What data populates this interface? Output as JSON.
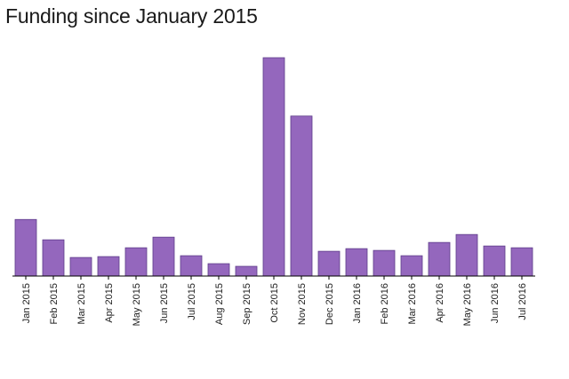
{
  "chart_data": {
    "type": "bar",
    "title": "Funding since January 2015",
    "xlabel": "",
    "ylabel": "",
    "categories": [
      "Jan 2015",
      "Feb 2015",
      "Mar 2015",
      "Apr 2015",
      "May 2015",
      "Jun 2015",
      "Jul 2015",
      "Aug 2015",
      "Sep 2015",
      "Oct 2015",
      "Nov 2015",
      "Dec 2015",
      "Jan 2016",
      "Feb 2016",
      "Mar 2016",
      "Apr 2016",
      "May 2016",
      "Jun 2016",
      "Jul 2016"
    ],
    "values": [
      64,
      41,
      21,
      22,
      32,
      44,
      23,
      14,
      11,
      247,
      181,
      28,
      31,
      29,
      23,
      38,
      47,
      34,
      32
    ],
    "ylim": [
      0,
      247
    ],
    "grid": false,
    "legend": "none",
    "bar_color": "#9467bd",
    "bar_edge_color": "#5e3c8a",
    "axis_color": "#000000"
  }
}
